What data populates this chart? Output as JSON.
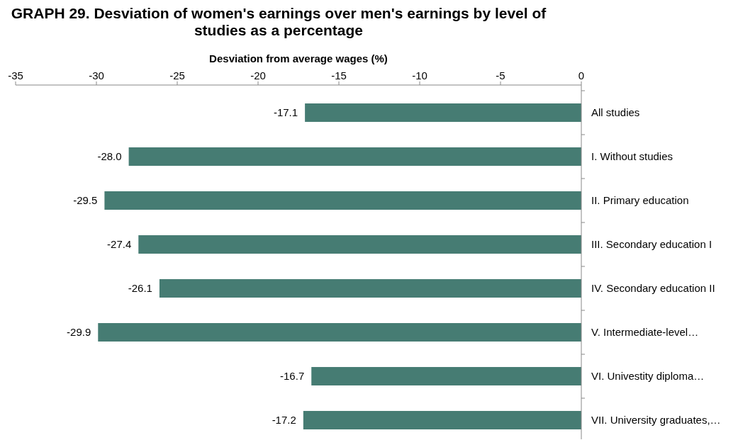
{
  "chart_data": {
    "type": "bar",
    "orientation": "horizontal",
    "title": "GRAPH 29. Desviation of women's earnings over men's earnings by level of studies as a percentage",
    "xlabel": "Desviation from average wages (%)",
    "categories": [
      "All studies",
      "I. Without studies",
      "II. Primary education",
      "III. Secondary education I",
      "IV. Secondary education II",
      "V. Intermediate-level…",
      "VI. Univestity  diploma…",
      "VII. University graduates,…"
    ],
    "values": [
      -17.1,
      -28.0,
      -29.5,
      -27.4,
      -26.1,
      -29.9,
      -16.7,
      -17.2
    ],
    "value_labels": [
      "-17.1",
      "-28.0",
      "-29.5",
      "-27.4",
      "-26.1",
      "-29.9",
      "-16.7",
      "-17.2"
    ],
    "color": "#467c73",
    "xlim": [
      -35,
      0
    ],
    "xticks": [
      -35,
      -30,
      -25,
      -20,
      -15,
      -10,
      -5,
      0
    ],
    "grid": false
  }
}
